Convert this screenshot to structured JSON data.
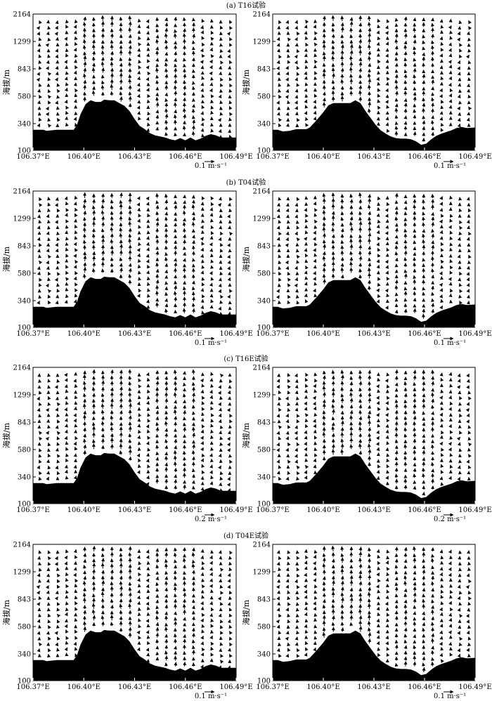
{
  "figure": {
    "y_axis_label": "海拔/m",
    "x_tick_labels": [
      "106.37°E",
      "106.40°E",
      "106.43°E",
      "106.46°E",
      "106.49°E"
    ],
    "x_tick_values": [
      106.37,
      106.4,
      106.43,
      106.46,
      106.49
    ],
    "y_tick_labels": [
      "2164",
      "1299",
      "843",
      "580",
      "340",
      "100"
    ]
  },
  "panels": [
    {
      "title": "(a) T16试验",
      "reference_vector": [
        "0.1 m·s⁻¹",
        "0.1 m·s⁻¹"
      ]
    },
    {
      "title": "(b) T04试验",
      "reference_vector": [
        "0.1 m·s⁻¹",
        "0.1 m·s⁻¹"
      ]
    },
    {
      "title": "(c) T16E试验",
      "reference_vector": [
        "0.2 m·s⁻¹",
        "0.2 m·s⁻¹"
      ]
    },
    {
      "title": "(d) T04E试验",
      "reference_vector": [
        "0.1 m·s⁻¹",
        "0.1 m·s⁻¹"
      ]
    }
  ],
  "chart_data": {
    "type": "vector-field cross-section with terrain",
    "xlim": [
      106.37,
      106.49
    ],
    "y_levels_m": [
      100,
      340,
      580,
      843,
      1299,
      2164
    ],
    "terrain_left_m": [
      [
        106.37,
        285
      ],
      [
        106.376,
        285
      ],
      [
        106.378,
        275
      ],
      [
        106.384,
        285
      ],
      [
        106.394,
        285
      ],
      [
        106.396,
        330
      ],
      [
        106.398,
        420
      ],
      [
        106.401,
        510
      ],
      [
        106.404,
        545
      ],
      [
        106.407,
        530
      ],
      [
        106.41,
        530
      ],
      [
        106.412,
        550
      ],
      [
        106.415,
        545
      ],
      [
        106.418,
        545
      ],
      [
        106.421,
        520
      ],
      [
        106.424,
        495
      ],
      [
        106.427,
        450
      ],
      [
        106.43,
        380
      ],
      [
        106.433,
        320
      ],
      [
        106.436,
        290
      ],
      [
        106.439,
        255
      ],
      [
        106.442,
        235
      ],
      [
        106.445,
        225
      ],
      [
        106.448,
        215
      ],
      [
        106.451,
        200
      ],
      [
        106.454,
        190
      ],
      [
        106.457,
        210
      ],
      [
        106.46,
        190
      ],
      [
        106.463,
        215
      ],
      [
        106.466,
        190
      ],
      [
        106.469,
        205
      ],
      [
        106.472,
        230
      ],
      [
        106.475,
        245
      ],
      [
        106.478,
        235
      ],
      [
        106.481,
        215
      ],
      [
        106.49,
        215
      ]
    ],
    "terrain_right_m": [
      [
        106.37,
        285
      ],
      [
        106.373,
        285
      ],
      [
        106.376,
        270
      ],
      [
        106.38,
        275
      ],
      [
        106.384,
        290
      ],
      [
        106.39,
        290
      ],
      [
        106.392,
        305
      ],
      [
        106.396,
        370
      ],
      [
        106.4,
        440
      ],
      [
        106.403,
        500
      ],
      [
        106.406,
        520
      ],
      [
        106.41,
        520
      ],
      [
        106.416,
        520
      ],
      [
        106.419,
        545
      ],
      [
        106.422,
        520
      ],
      [
        106.425,
        450
      ],
      [
        106.428,
        390
      ],
      [
        106.431,
        330
      ],
      [
        106.434,
        280
      ],
      [
        106.437,
        250
      ],
      [
        106.44,
        225
      ],
      [
        106.443,
        210
      ],
      [
        106.446,
        205
      ],
      [
        106.449,
        205
      ],
      [
        106.452,
        200
      ],
      [
        106.455,
        180
      ],
      [
        106.458,
        150
      ],
      [
        106.461,
        160
      ],
      [
        106.464,
        200
      ],
      [
        106.467,
        230
      ],
      [
        106.47,
        250
      ],
      [
        106.473,
        265
      ],
      [
        106.476,
        280
      ],
      [
        106.479,
        300
      ],
      [
        106.482,
        310
      ],
      [
        106.485,
        300
      ],
      [
        106.49,
        305
      ]
    ]
  }
}
